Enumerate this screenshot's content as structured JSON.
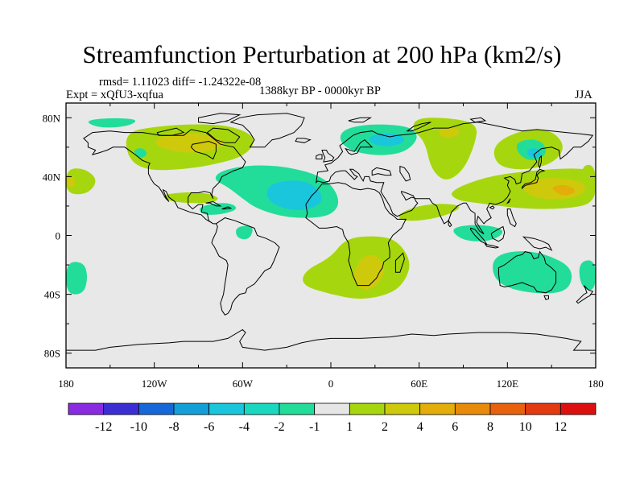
{
  "title": "Streamfunction Perturbation at 200 hPa (km2/s)",
  "stats": "rmsd= 1.11023 diff= -1.24322e-08",
  "expt": "Expt = xQfU3-xqfua",
  "period": "1388kyr BP - 0000kyr BP",
  "season": "JJA",
  "map": {
    "lon_ticks": [
      "180",
      "120W",
      "60W",
      "0",
      "60E",
      "120E",
      "180"
    ],
    "lat_ticks": [
      "80N",
      "40N",
      "0",
      "40S",
      "80S"
    ],
    "ocean_color": "#e8e8e8"
  },
  "colorbar": {
    "colors": [
      "#8a2be2",
      "#3b2fd4",
      "#1668d8",
      "#139fd8",
      "#19c6dc",
      "#1ad8c0",
      "#22dd9a",
      "#e6e6e6",
      "#a6d70e",
      "#cfc90c",
      "#e3ae0a",
      "#e88a0a",
      "#e8620d",
      "#e33a12",
      "#dd1010"
    ],
    "labels": [
      "-12",
      "-10",
      "-8",
      "-6",
      "-4",
      "-2",
      "-1",
      "1",
      "2",
      "4",
      "6",
      "8",
      "10",
      "12"
    ]
  },
  "blobs": [
    {
      "color": "#a6d70e",
      "pts": [
        [
          -140,
          70
        ],
        [
          -120,
          74
        ],
        [
          -90,
          76
        ],
        [
          -65,
          74
        ],
        [
          -50,
          66
        ],
        [
          -58,
          54
        ],
        [
          -80,
          48
        ],
        [
          -100,
          45
        ],
        [
          -125,
          44
        ],
        [
          -138,
          52
        ]
      ]
    },
    {
      "color": "#cfc90c",
      "pts": [
        [
          -120,
          66
        ],
        [
          -100,
          70
        ],
        [
          -80,
          68
        ],
        [
          -70,
          62
        ],
        [
          -82,
          57
        ],
        [
          -100,
          56
        ],
        [
          -118,
          60
        ]
      ]
    },
    {
      "color": "#22dd9a",
      "pts": [
        [
          -75,
          44
        ],
        [
          -55,
          48
        ],
        [
          -30,
          47
        ],
        [
          -5,
          40
        ],
        [
          5,
          28
        ],
        [
          5,
          18
        ],
        [
          -5,
          12
        ],
        [
          -30,
          12
        ],
        [
          -50,
          18
        ],
        [
          -60,
          25
        ],
        [
          -70,
          33
        ],
        [
          -80,
          38
        ]
      ]
    },
    {
      "color": "#19c6dc",
      "pts": [
        [
          -40,
          36
        ],
        [
          -20,
          38
        ],
        [
          -8,
          32
        ],
        [
          -5,
          22
        ],
        [
          -20,
          16
        ],
        [
          -38,
          20
        ],
        [
          -45,
          28
        ]
      ]
    },
    {
      "color": "#22dd9a",
      "pts": [
        [
          -168,
          78
        ],
        [
          -150,
          80
        ],
        [
          -130,
          79
        ],
        [
          -138,
          74
        ],
        [
          -158,
          73
        ]
      ]
    },
    {
      "color": "#22dd9a",
      "pts": [
        [
          -135,
          58
        ],
        [
          -128,
          60
        ],
        [
          -124,
          55
        ],
        [
          -130,
          52
        ]
      ]
    },
    {
      "color": "#a6d70e",
      "pts": [
        [
          -115,
          28
        ],
        [
          -90,
          30
        ],
        [
          -75,
          26
        ],
        [
          -80,
          22
        ],
        [
          -100,
          22
        ],
        [
          -112,
          24
        ]
      ]
    },
    {
      "color": "#22dd9a",
      "pts": [
        [
          -90,
          20
        ],
        [
          -70,
          23
        ],
        [
          -62,
          18
        ],
        [
          -75,
          14
        ],
        [
          -88,
          14
        ]
      ]
    },
    {
      "color": "#22dd9a",
      "pts": [
        [
          -65,
          6
        ],
        [
          -52,
          7
        ],
        [
          -55,
          -3
        ],
        [
          -64,
          -2
        ]
      ]
    },
    {
      "color": "#a6d70e",
      "pts": [
        [
          -180,
          45
        ],
        [
          -168,
          46
        ],
        [
          -158,
          38
        ],
        [
          -165,
          28
        ],
        [
          -180,
          28
        ]
      ]
    },
    {
      "color": "#cfc90c",
      "pts": [
        [
          -180,
          40
        ],
        [
          -174,
          40
        ],
        [
          -174,
          33
        ],
        [
          -180,
          33
        ]
      ]
    },
    {
      "color": "#a6d70e",
      "pts": [
        [
          170,
          48
        ],
        [
          180,
          48
        ],
        [
          180,
          25
        ],
        [
          170,
          26
        ]
      ]
    },
    {
      "color": "#22dd9a",
      "pts": [
        [
          -180,
          -18
        ],
        [
          -168,
          -18
        ],
        [
          -165,
          -28
        ],
        [
          -168,
          -40
        ],
        [
          -180,
          -40
        ]
      ]
    },
    {
      "color": "#22dd9a",
      "pts": [
        [
          168,
          -18
        ],
        [
          180,
          -16
        ],
        [
          180,
          -38
        ],
        [
          170,
          -36
        ]
      ]
    },
    {
      "color": "#22dd9a",
      "pts": [
        [
          10,
          73
        ],
        [
          30,
          76
        ],
        [
          55,
          74
        ],
        [
          60,
          66
        ],
        [
          50,
          56
        ],
        [
          30,
          54
        ],
        [
          12,
          58
        ],
        [
          5,
          66
        ]
      ]
    },
    {
      "color": "#19c6dc",
      "pts": [
        [
          25,
          68
        ],
        [
          45,
          70
        ],
        [
          52,
          64
        ],
        [
          40,
          60
        ],
        [
          28,
          62
        ]
      ]
    },
    {
      "color": "#a6d70e",
      "pts": [
        [
          58,
          80
        ],
        [
          80,
          80
        ],
        [
          100,
          76
        ],
        [
          98,
          62
        ],
        [
          90,
          44
        ],
        [
          78,
          36
        ],
        [
          68,
          45
        ],
        [
          64,
          64
        ],
        [
          55,
          72
        ]
      ]
    },
    {
      "color": "#cfc90c",
      "pts": [
        [
          72,
          72
        ],
        [
          86,
          74
        ],
        [
          88,
          68
        ],
        [
          76,
          66
        ]
      ]
    },
    {
      "color": "#a6d70e",
      "pts": [
        [
          110,
          62
        ],
        [
          130,
          72
        ],
        [
          150,
          72
        ],
        [
          160,
          60
        ],
        [
          150,
          48
        ],
        [
          128,
          44
        ],
        [
          112,
          48
        ]
      ]
    },
    {
      "color": "#22dd9a",
      "pts": [
        [
          125,
          64
        ],
        [
          142,
          66
        ],
        [
          148,
          56
        ],
        [
          138,
          50
        ],
        [
          128,
          54
        ]
      ]
    },
    {
      "color": "#19c6dc",
      "pts": [
        [
          132,
          58
        ],
        [
          140,
          60
        ],
        [
          144,
          54
        ],
        [
          136,
          52
        ]
      ]
    },
    {
      "color": "#a6d70e",
      "pts": [
        [
          80,
          30
        ],
        [
          105,
          40
        ],
        [
          135,
          44
        ],
        [
          165,
          46
        ],
        [
          180,
          44
        ],
        [
          180,
          22
        ],
        [
          160,
          18
        ],
        [
          130,
          18
        ],
        [
          100,
          22
        ],
        [
          85,
          24
        ]
      ]
    },
    {
      "color": "#cfc90c",
      "pts": [
        [
          130,
          36
        ],
        [
          150,
          40
        ],
        [
          175,
          36
        ],
        [
          170,
          26
        ],
        [
          148,
          24
        ],
        [
          132,
          28
        ]
      ]
    },
    {
      "color": "#e3ae0a",
      "pts": [
        [
          148,
          33
        ],
        [
          160,
          35
        ],
        [
          168,
          30
        ],
        [
          158,
          26
        ]
      ]
    },
    {
      "color": "#a6d70e",
      "pts": [
        [
          45,
          14
        ],
        [
          58,
          20
        ],
        [
          76,
          22
        ],
        [
          90,
          20
        ],
        [
          80,
          14
        ],
        [
          62,
          10
        ],
        [
          48,
          10
        ]
      ]
    },
    {
      "color": "#a6d70e",
      "pts": [
        [
          10,
          -2
        ],
        [
          30,
          0
        ],
        [
          45,
          -3
        ],
        [
          55,
          -18
        ],
        [
          50,
          -32
        ],
        [
          40,
          -40
        ],
        [
          20,
          -44
        ],
        [
          0,
          -40
        ],
        [
          -20,
          -34
        ],
        [
          -18,
          -24
        ],
        [
          0,
          -15
        ]
      ]
    },
    {
      "color": "#cfc90c",
      "pts": [
        [
          20,
          -15
        ],
        [
          30,
          -12
        ],
        [
          38,
          -22
        ],
        [
          32,
          -34
        ],
        [
          22,
          -38
        ],
        [
          14,
          -30
        ]
      ]
    },
    {
      "color": "#22dd9a",
      "pts": [
        [
          110,
          -15
        ],
        [
          125,
          -10
        ],
        [
          145,
          -12
        ],
        [
          165,
          -22
        ],
        [
          162,
          -38
        ],
        [
          142,
          -40
        ],
        [
          120,
          -36
        ],
        [
          110,
          -28
        ]
      ]
    },
    {
      "color": "#22dd9a",
      "pts": [
        [
          80,
          5
        ],
        [
          100,
          8
        ],
        [
          120,
          4
        ],
        [
          110,
          -4
        ],
        [
          90,
          -4
        ]
      ]
    }
  ]
}
